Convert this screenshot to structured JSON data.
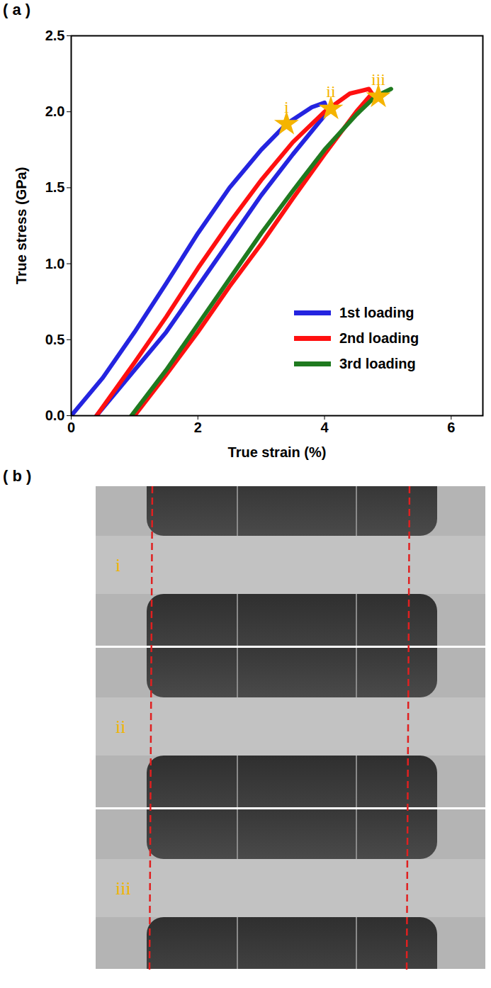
{
  "chart_data": {
    "type": "line",
    "panel_label": "( a )",
    "xlabel": "True strain (%)",
    "ylabel": "True stress (GPa)",
    "xlim": [
      0,
      6.5
    ],
    "xticks": [
      0,
      2,
      4,
      6
    ],
    "ylim": [
      0,
      2.5
    ],
    "yticks": [
      {
        "value": 0,
        "label": "0.0"
      },
      {
        "value": 0.5,
        "label": "0.5"
      },
      {
        "value": 1,
        "label": "1.0"
      },
      {
        "value": 1.5,
        "label": "1.5"
      },
      {
        "value": 2,
        "label": "2.0"
      },
      {
        "value": 2.5,
        "label": "2.5"
      }
    ],
    "legend": "lower right",
    "series": [
      {
        "name": "1st loading",
        "color": "#2424e0",
        "x": [
          0,
          0.5,
          1,
          1.5,
          2,
          2.5,
          3,
          3.4,
          3.8,
          4.0,
          4.05,
          3.5,
          3.0,
          2.5,
          2.0,
          1.5,
          1.0,
          0.4
        ],
        "values": [
          0,
          0.25,
          0.55,
          0.87,
          1.2,
          1.5,
          1.75,
          1.92,
          2.03,
          2.06,
          2.0,
          1.72,
          1.45,
          1.15,
          0.85,
          0.55,
          0.3,
          0
        ]
      },
      {
        "name": "2nd loading",
        "color": "#ff1010",
        "x": [
          0.4,
          1,
          1.5,
          2,
          2.5,
          3,
          3.5,
          4.0,
          4.4,
          4.7,
          4.75,
          4.5,
          4.0,
          3.5,
          3.0,
          2.5,
          2.0,
          1.5,
          1.0
        ],
        "values": [
          0,
          0.35,
          0.65,
          0.97,
          1.27,
          1.55,
          1.8,
          2.0,
          2.12,
          2.15,
          2.12,
          2.0,
          1.72,
          1.43,
          1.13,
          0.85,
          0.55,
          0.27,
          0
        ]
      },
      {
        "name": "3rd loading",
        "color": "#1f7a1f",
        "x": [
          0.95,
          1.5,
          2,
          2.5,
          3,
          3.5,
          4,
          4.5,
          4.8,
          5.05
        ],
        "values": [
          0,
          0.3,
          0.6,
          0.9,
          1.2,
          1.48,
          1.75,
          1.98,
          2.1,
          2.15
        ]
      },
      {
        "type": "scatter",
        "marker": "star",
        "color": "#f5b400",
        "x": [
          3.4,
          4.1,
          4.85
        ],
        "values": [
          1.92,
          2.02,
          2.1
        ],
        "labels": [
          "i",
          "ii",
          "iii"
        ]
      }
    ]
  },
  "panel_b": {
    "label": "( b )",
    "frames": [
      "i",
      "ii",
      "iii"
    ]
  }
}
